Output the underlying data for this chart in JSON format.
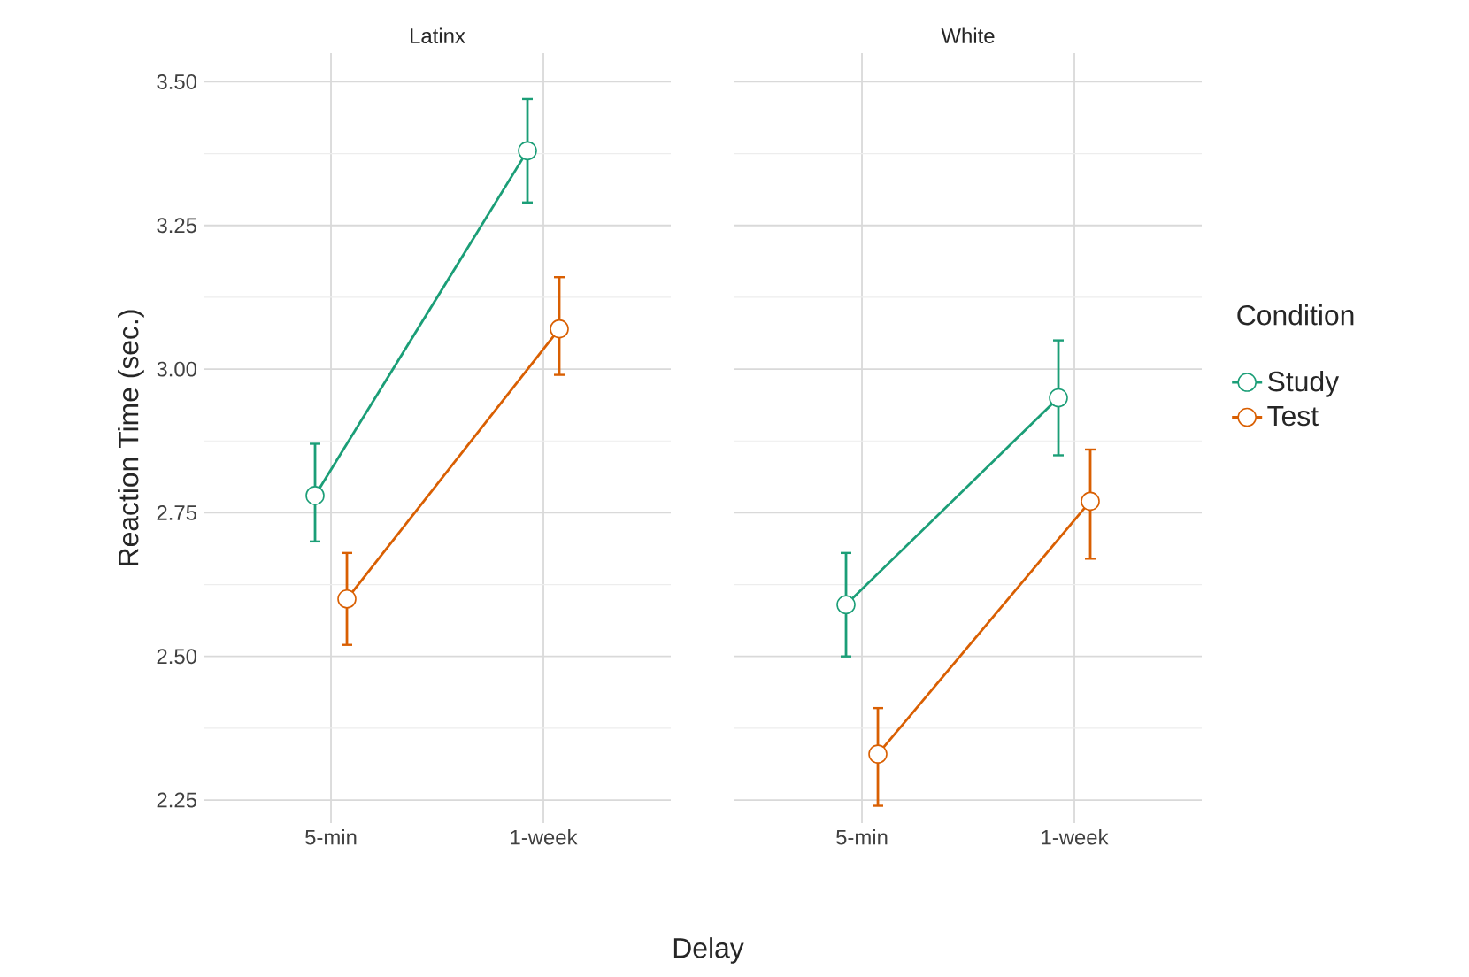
{
  "chart_data": [
    {
      "type": "line",
      "title": "Latinx",
      "xlabel": "Delay",
      "ylabel": "Reaction Time (sec.)",
      "categories": [
        "5-min",
        "1-week"
      ],
      "ylim": [
        2.21,
        3.55
      ],
      "yticks": [
        {
          "value": 2.25,
          "label": "2.25"
        },
        {
          "value": 2.5,
          "label": "2.50"
        },
        {
          "value": 2.75,
          "label": "2.75"
        },
        {
          "value": 3,
          "label": "3.00"
        },
        {
          "value": 3.25,
          "label": "3.25"
        },
        {
          "value": 3.5,
          "label": "3.50"
        }
      ],
      "grid": true,
      "marker": "circle",
      "series": [
        {
          "color": "#1b9e77",
          "values": [
            2.78,
            3.38
          ],
          "errors": [
            [
              2.7,
              2.87
            ],
            [
              3.29,
              3.47
            ]
          ]
        },
        {
          "color": "#d95f02",
          "values": [
            2.6,
            3.07
          ],
          "errors": [
            [
              2.52,
              2.68
            ],
            [
              2.99,
              3.16
            ]
          ]
        }
      ]
    },
    {
      "type": "line",
      "title": "White",
      "categories": [
        "5-min",
        "1-week"
      ],
      "ylim": [
        2.21,
        3.55
      ],
      "yticks": [
        2.25,
        2.5,
        2.75,
        3,
        3.25,
        3.5
      ],
      "tick_labels": "x",
      "grid": true,
      "marker": "circle",
      "legend": "right",
      "legend_title": "Condition",
      "series": [
        {
          "name": "Study",
          "color": "#1b9e77",
          "values": [
            2.59,
            2.95
          ],
          "errors": [
            [
              2.5,
              2.68
            ],
            [
              2.85,
              3.05
            ]
          ]
        },
        {
          "name": "Test",
          "color": "#d95f02",
          "values": [
            2.33,
            2.77
          ],
          "errors": [
            [
              2.24,
              2.41
            ],
            [
              2.67,
              2.86
            ]
          ]
        }
      ]
    }
  ]
}
